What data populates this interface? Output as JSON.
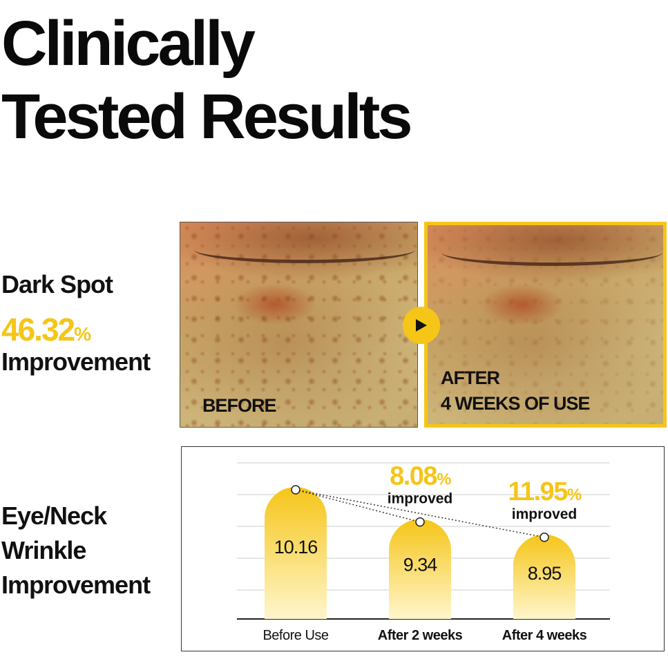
{
  "headline": {
    "line1": "Clinically",
    "line2": "Tested Results"
  },
  "dark_spot": {
    "title": "Dark Spot",
    "value": "46.32",
    "unit": "%",
    "subtitle": "Improvement",
    "before_label": "BEFORE",
    "after_label_line1": "AFTER",
    "after_label_line2": "4 WEEKS OF USE"
  },
  "wrinkle": {
    "title_line1": "Eye/Neck",
    "title_line2": "Wrinkle",
    "title_line3": "Improvement"
  },
  "colors": {
    "accent": "#f5c518",
    "text": "#111111"
  },
  "icons": {
    "next": "play-arrow-icon"
  },
  "chart_data": {
    "type": "bar",
    "categories": [
      "Before Use",
      "After 2 weeks",
      "After 4 weeks"
    ],
    "values": [
      10.16,
      9.34,
      8.95
    ],
    "value_labels": [
      "10.16",
      "9.34",
      "8.95"
    ],
    "annotations": [
      {
        "category": "After 2 weeks",
        "value": "8.08",
        "unit": "%",
        "text": "improved"
      },
      {
        "category": "After 4 weeks",
        "value": "11.95",
        "unit": "%",
        "text": "improved"
      }
    ],
    "grid": true,
    "legend": "none"
  }
}
